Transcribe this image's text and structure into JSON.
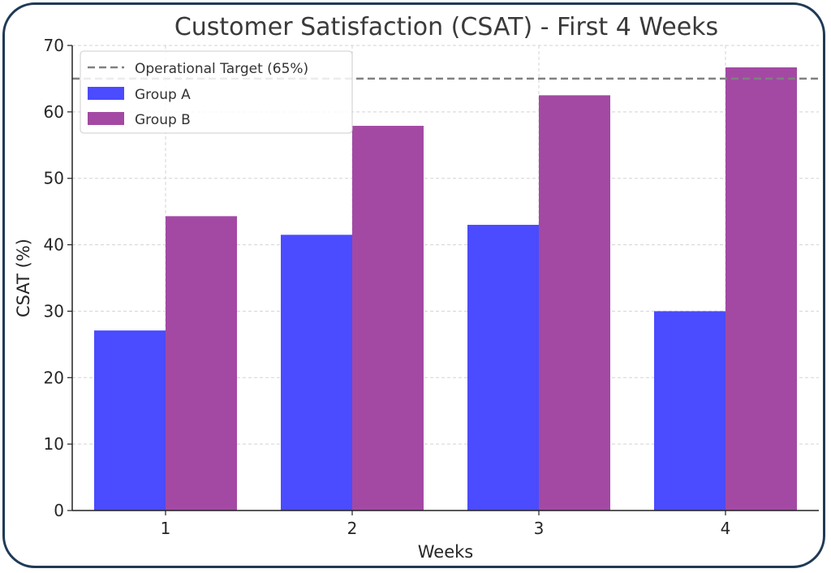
{
  "chart_data": {
    "type": "bar",
    "title": "Customer Satisfaction (CSAT) - First 4 Weeks",
    "xlabel": "Weeks",
    "ylabel": "CSAT (%)",
    "categories": [
      "1",
      "2",
      "3",
      "4"
    ],
    "series": [
      {
        "name": "Group A",
        "color": "#4b4bff",
        "values": [
          27.1,
          41.5,
          43.0,
          30.0
        ]
      },
      {
        "name": "Group B",
        "color": "#a349a4",
        "values": [
          44.3,
          57.9,
          62.5,
          66.7
        ]
      }
    ],
    "reference_line": {
      "label": "Operational Target (65%)",
      "value": 65,
      "color": "#808080",
      "style": "dashed"
    },
    "ylim": [
      0,
      70
    ],
    "yticks": [
      0,
      10,
      20,
      30,
      40,
      50,
      60,
      70
    ],
    "grid": true,
    "legend_position": "top-left"
  }
}
